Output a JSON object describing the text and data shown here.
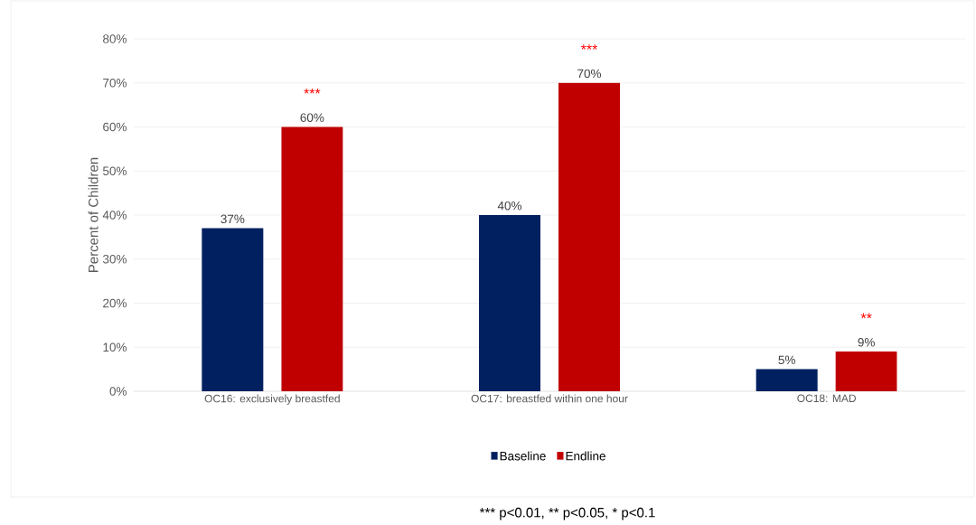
{
  "chart_data": {
    "type": "bar",
    "ylabel": "Percent of Children",
    "categories": [
      "OC16: exclusively breastfed",
      "OC17: breastfed within one hour",
      "OC18: MAD"
    ],
    "series": [
      {
        "name": "Baseline",
        "color": "#002060",
        "values": [
          37,
          40,
          5
        ],
        "value_labels": [
          "37%",
          "40%",
          "5%"
        ]
      },
      {
        "name": "Endline",
        "color": "#c00000",
        "values": [
          60,
          70,
          9
        ],
        "value_labels": [
          "60%",
          "70%",
          "9%"
        ]
      }
    ],
    "ylim": [
      0,
      80
    ],
    "yticks": [
      {
        "value": 0,
        "label": "0%"
      },
      {
        "value": 10,
        "label": "10%"
      },
      {
        "value": 20,
        "label": "20%"
      },
      {
        "value": 30,
        "label": "30%"
      },
      {
        "value": 40,
        "label": "40%"
      },
      {
        "value": 50,
        "label": "50%"
      },
      {
        "value": 60,
        "label": "60%"
      },
      {
        "value": 70,
        "label": "70%"
      },
      {
        "value": 80,
        "label": "80%"
      }
    ],
    "grid": "y",
    "legend": "bottom",
    "annotations": [
      "***",
      "***",
      "**",
      "*** p<0.01, ** p<0.05, * p<0.1"
    ]
  }
}
